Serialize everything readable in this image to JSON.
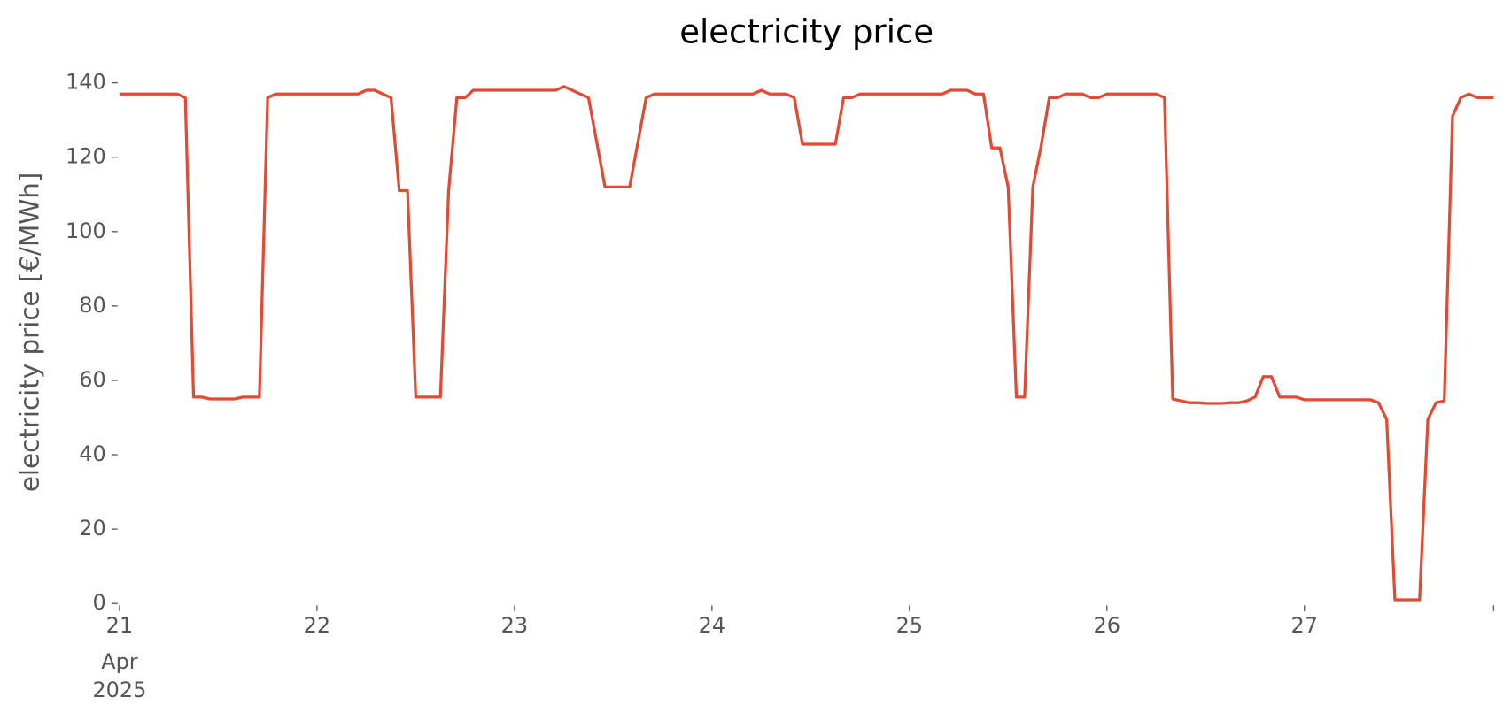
{
  "chart_data": {
    "type": "line",
    "title": "electricity price",
    "ylabel": "electricity price [€/MWh]",
    "xtick_month": "Apr",
    "xtick_year": "2025",
    "xlim": [
      0,
      167
    ],
    "xticks": [
      {
        "value": 0,
        "label": "21"
      },
      {
        "value": 24,
        "label": "22"
      },
      {
        "value": 48,
        "label": "23"
      },
      {
        "value": 72,
        "label": "24"
      },
      {
        "value": 96,
        "label": "25"
      },
      {
        "value": 120,
        "label": "26"
      },
      {
        "value": 144,
        "label": "27"
      },
      {
        "value": 167,
        "label": null
      }
    ],
    "ylim": [
      0,
      140
    ],
    "yticks": [
      0,
      20,
      40,
      60,
      80,
      100,
      120,
      140
    ],
    "series": [
      {
        "color": "#e24a33",
        "values": [
          137,
          137,
          137,
          137,
          137,
          137,
          137,
          137,
          136,
          55.5,
          55.5,
          55,
          55,
          55,
          55,
          55.5,
          55.5,
          55.5,
          136,
          137,
          137,
          137,
          137,
          137,
          137,
          137,
          137,
          137,
          137,
          137,
          138,
          138,
          137,
          136,
          111,
          111,
          55.5,
          55.5,
          55.5,
          55.5,
          111,
          136,
          136,
          138,
          138,
          138,
          138,
          138,
          138,
          138,
          138,
          138,
          138,
          138,
          139,
          138,
          137,
          136,
          124,
          112,
          112,
          112,
          112,
          124,
          136,
          137,
          137,
          137,
          137,
          137,
          137,
          137,
          137,
          137,
          137,
          137,
          137,
          137,
          138,
          137,
          137,
          137,
          136,
          123.5,
          123.5,
          123.5,
          123.5,
          123.5,
          136,
          136,
          137,
          137,
          137,
          137,
          137,
          137,
          137,
          137,
          137,
          137,
          137,
          138,
          138,
          138,
          137,
          137,
          122.5,
          122.5,
          112,
          55.5,
          55.5,
          112,
          123,
          136,
          136,
          137,
          137,
          137,
          136,
          136,
          137,
          137,
          137,
          137,
          137,
          137,
          137,
          136,
          55,
          54.5,
          54,
          54,
          53.8,
          53.8,
          53.8,
          54,
          54,
          54.5,
          55.5,
          61,
          61,
          55.5,
          55.5,
          55.5,
          54.8,
          54.8,
          54.8,
          54.8,
          54.8,
          54.8,
          54.8,
          54.8,
          54.8,
          54,
          49.5,
          1,
          1,
          1,
          1,
          49.5,
          54,
          54.5,
          131,
          136,
          137,
          136,
          136,
          136
        ]
      }
    ]
  }
}
